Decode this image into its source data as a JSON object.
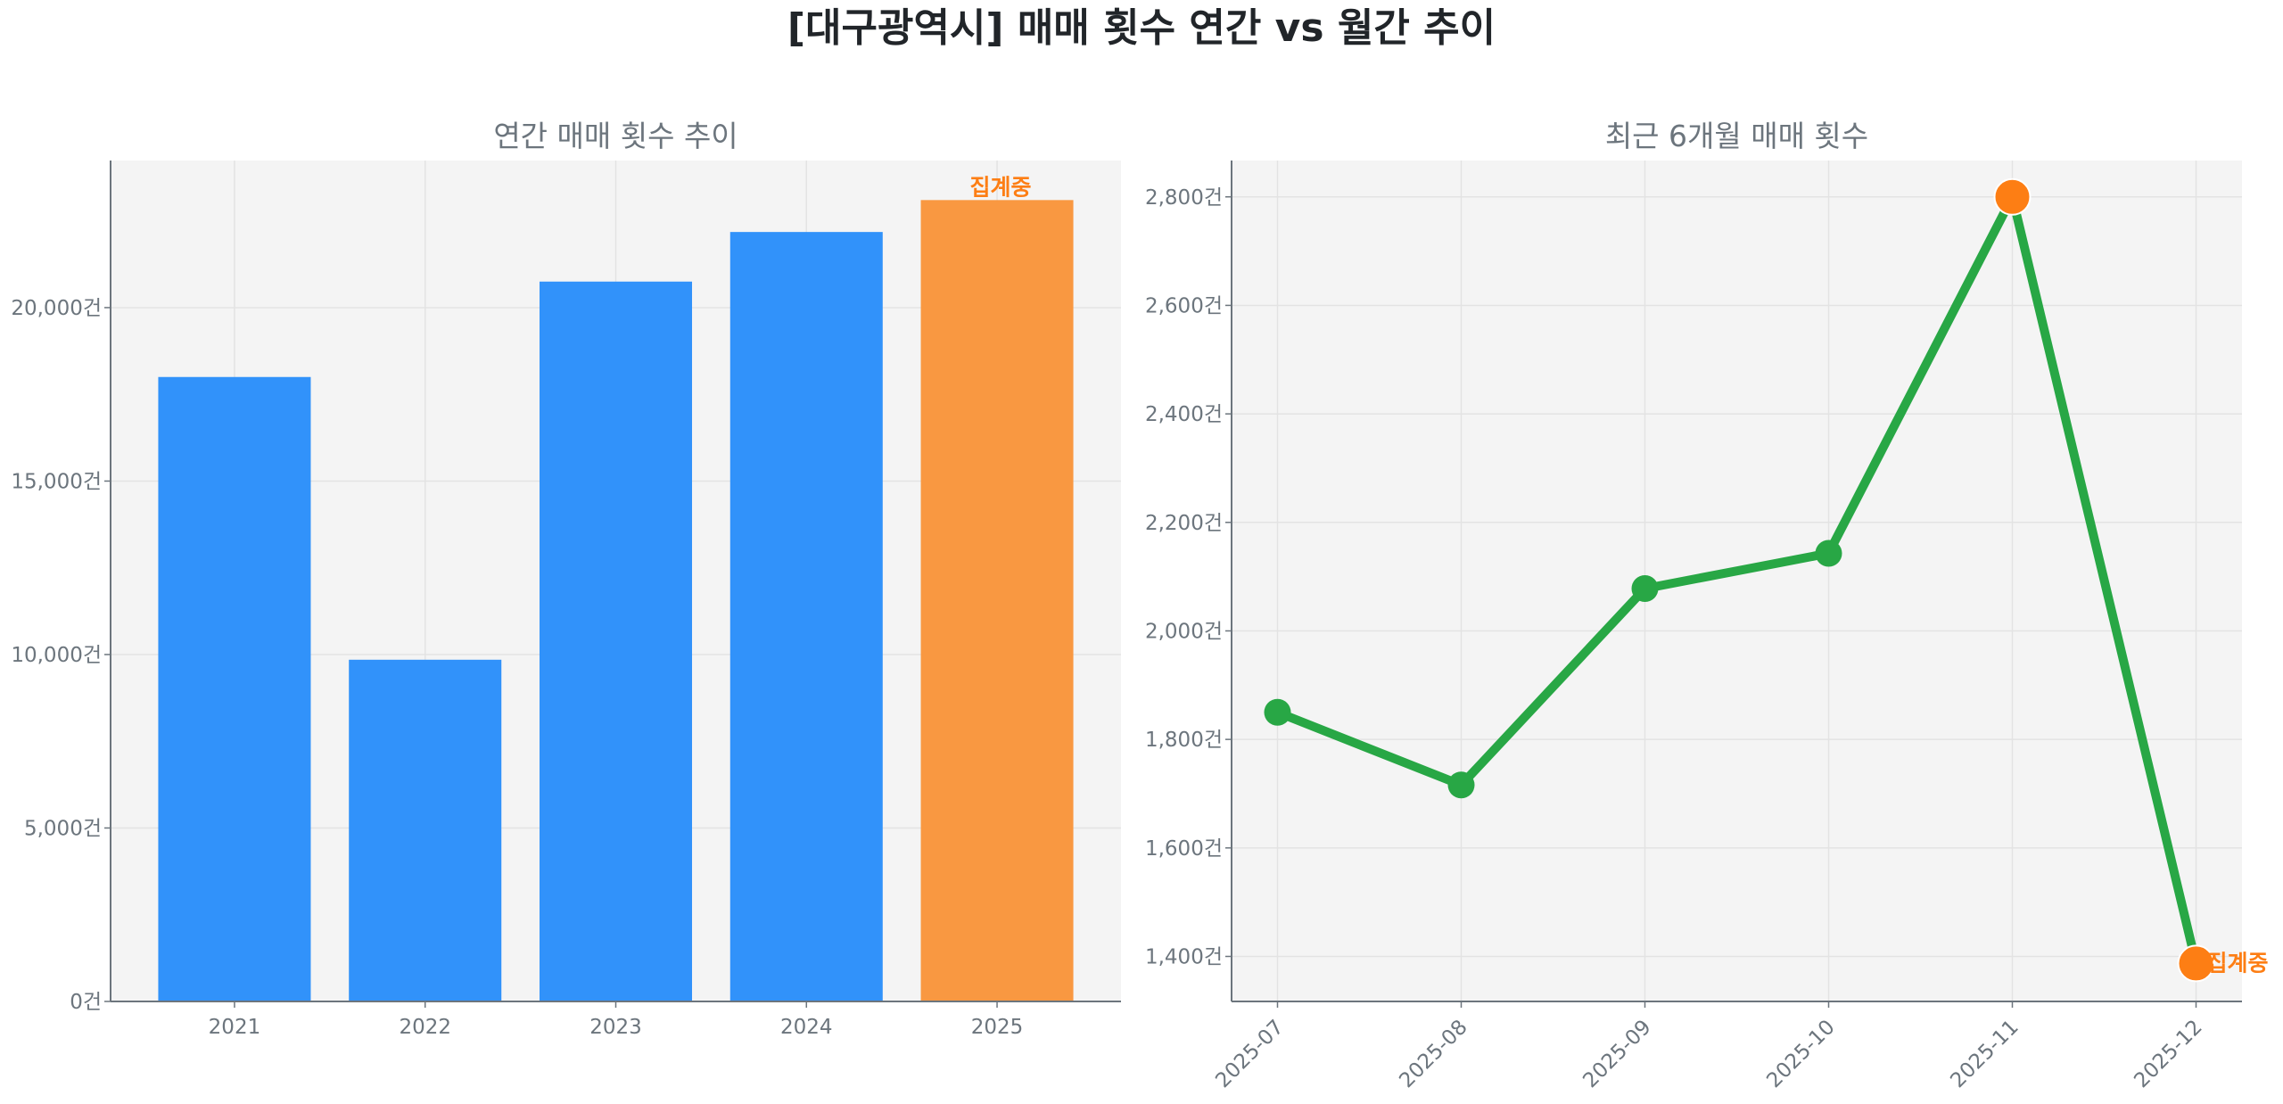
{
  "title": "[대구광역시] 매매 횟수 연간 vs 월간 추이",
  "colors": {
    "bar": "#3192fa",
    "bar_partial": "#f99841",
    "line": "#28a745",
    "marker_highlight": "#fd7e14",
    "text": "#6c757d",
    "axes_bg": "#f4f4f4"
  },
  "chart_data": [
    {
      "type": "bar",
      "title": "연간 매매 횟수 추이",
      "categories": [
        "2021",
        "2022",
        "2023",
        "2024",
        "2025"
      ],
      "values": [
        18000,
        9850,
        20750,
        22180,
        23100
      ],
      "ylim": [
        0,
        24240
      ],
      "yticks": [
        0,
        5000,
        10000,
        15000,
        20000
      ],
      "ytick_labels": [
        "0건",
        "5,000건",
        "10,000건",
        "15,000건",
        "20,000건"
      ],
      "annotation": {
        "category": "2025",
        "text": "집계중"
      },
      "grid": true
    },
    {
      "type": "line",
      "title": "최근 6개월 매매 횟수",
      "categories": [
        "2025-07",
        "2025-08",
        "2025-09",
        "2025-10",
        "2025-11",
        "2025-12"
      ],
      "values": [
        1850,
        1716,
        2078,
        2143,
        2800,
        1387
      ],
      "highlight": [
        "2025-11",
        "2025-12"
      ],
      "ylim": [
        1317,
        2867
      ],
      "yticks": [
        1400,
        1600,
        1800,
        2000,
        2200,
        2400,
        2600,
        2800
      ],
      "ytick_labels": [
        "1,400건",
        "1,600건",
        "1,800건",
        "2,000건",
        "2,200건",
        "2,400건",
        "2,600건",
        "2,800건"
      ],
      "annotation": {
        "category": "2025-12",
        "text": "집계중"
      },
      "grid": true
    }
  ]
}
